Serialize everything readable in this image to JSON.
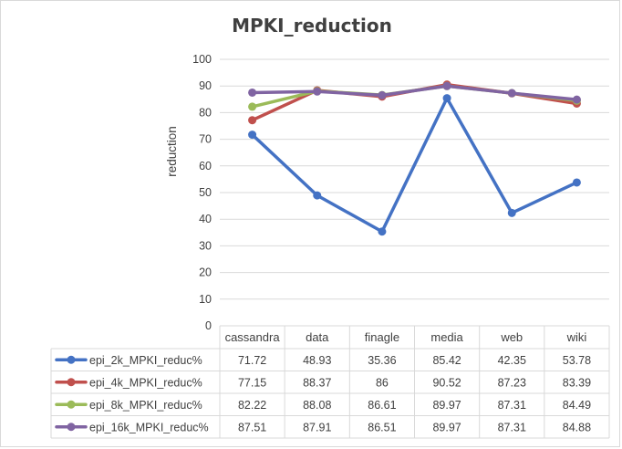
{
  "chart_data": {
    "type": "line",
    "title": "MPKI_reduction",
    "ylabel": "reduction",
    "xlabel": "",
    "ylim": [
      0,
      100
    ],
    "yticks": [
      0,
      10,
      20,
      30,
      40,
      50,
      60,
      70,
      80,
      90,
      100
    ],
    "grid": true,
    "legend_placement": "data table below chart",
    "categories": [
      "cassandra",
      "data",
      "finagle",
      "media",
      "web",
      "wiki"
    ],
    "series": [
      {
        "name": "epi_2k_MPKI_reduc%",
        "color": "#4472C4",
        "values": [
          71.72,
          48.93,
          35.36,
          85.42,
          42.35,
          53.78
        ]
      },
      {
        "name": "epi_4k_MPKI_reduc%",
        "color": "#C0504D",
        "values": [
          77.15,
          88.37,
          86,
          90.52,
          87.23,
          83.39
        ]
      },
      {
        "name": "epi_8k_MPKI_reduc%",
        "color": "#9BBB59",
        "values": [
          82.22,
          88.08,
          86.61,
          89.97,
          87.31,
          84.49
        ]
      },
      {
        "name": "epi_16k_MPKI_reduc%",
        "color": "#8064A2",
        "values": [
          87.51,
          87.91,
          86.51,
          89.97,
          87.31,
          84.88
        ]
      }
    ]
  }
}
